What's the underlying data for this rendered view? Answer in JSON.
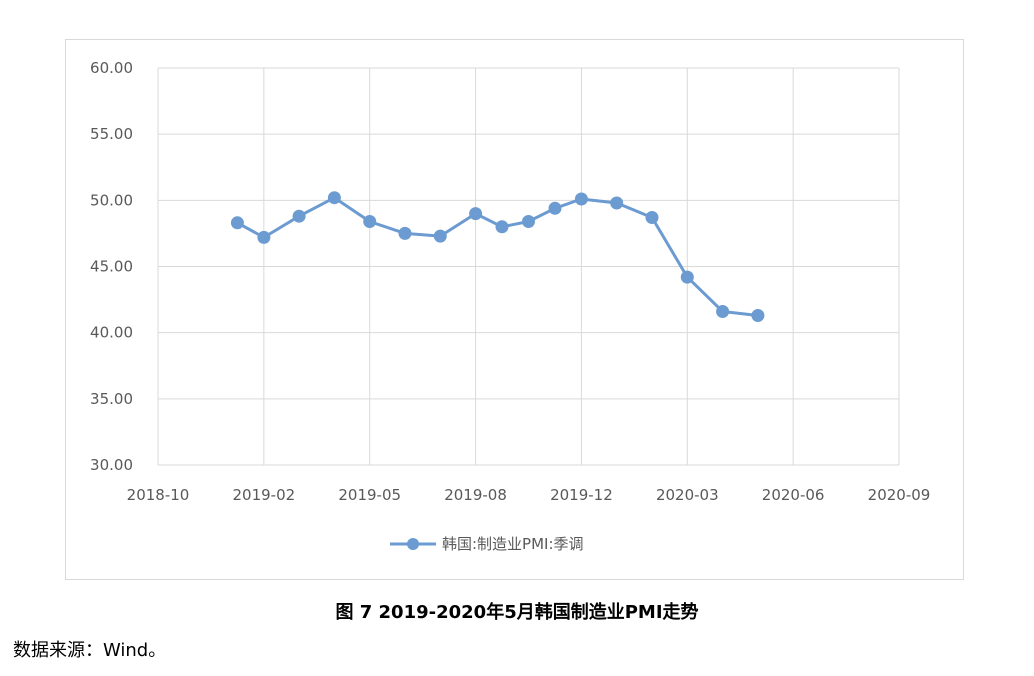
{
  "chart_data": {
    "type": "line",
    "x_axis_ticks": [
      "2018-10",
      "2019-02",
      "2019-05",
      "2019-08",
      "2019-12",
      "2020-03",
      "2020-06",
      "2020-09"
    ],
    "y_axis_ticks": [
      "30.00",
      "35.00",
      "40.00",
      "45.00",
      "50.00",
      "55.00",
      "60.00"
    ],
    "ylim": [
      30,
      60
    ],
    "grid": true,
    "legend_position": "bottom",
    "series": [
      {
        "name": "韩国:制造业PMI:季调",
        "color": "#6b9bd1",
        "x": [
          "2019-01",
          "2019-02",
          "2019-03",
          "2019-04",
          "2019-05",
          "2019-06",
          "2019-07",
          "2019-08",
          "2019-09",
          "2019-10",
          "2019-11",
          "2019-12",
          "2020-01",
          "2020-02",
          "2020-03",
          "2020-04",
          "2020-05"
        ],
        "values": [
          48.3,
          47.2,
          48.8,
          50.2,
          48.4,
          47.5,
          47.3,
          49.0,
          48.0,
          48.4,
          49.4,
          50.1,
          49.8,
          48.7,
          44.2,
          41.6,
          41.3
        ]
      }
    ]
  },
  "caption": "图 7 2019-2020年5月韩国制造业PMI走势",
  "source": "数据来源：Wind。"
}
